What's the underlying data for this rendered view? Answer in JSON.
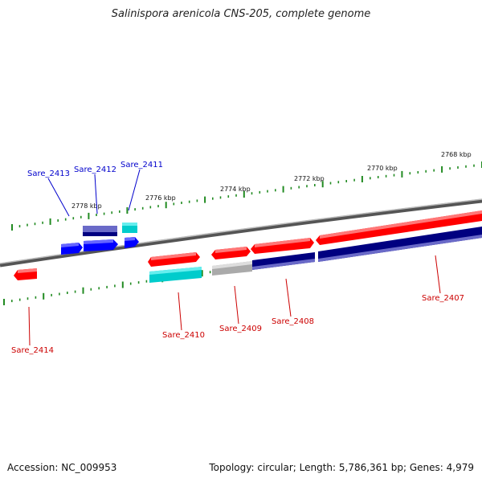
{
  "title": "Salinispora arenicola CNS-205, complete genome",
  "footer": {
    "accession": "Accession: NC_009953",
    "summary": "Topology: circular; Length: 5,786,361 bp; Genes: 4,979"
  },
  "colors": {
    "forward_gene": "#ff0000",
    "reverse_gene": "#0000ff",
    "cds_dark": "#000080",
    "rna": "#00cccc",
    "pseudo": "#aaaaaa",
    "backbone": "#777777",
    "tick": "#228b22",
    "label_red": "#cc0000",
    "label_blue": "#0000cc"
  },
  "kbp_labels": [
    "2778 kbp",
    "2776 kbp",
    "2774 kbp",
    "2772 kbp",
    "2770 kbp",
    "2768 kbp"
  ],
  "gene_labels": [
    {
      "name": "Sare_2413",
      "color": "blue"
    },
    {
      "name": "Sare_2412",
      "color": "blue"
    },
    {
      "name": "Sare_2411",
      "color": "blue"
    },
    {
      "name": "Sare_2414",
      "color": "red"
    },
    {
      "name": "Sare_2410",
      "color": "red"
    },
    {
      "name": "Sare_2409",
      "color": "red"
    },
    {
      "name": "Sare_2408",
      "color": "red"
    },
    {
      "name": "Sare_2407",
      "color": "red"
    }
  ]
}
